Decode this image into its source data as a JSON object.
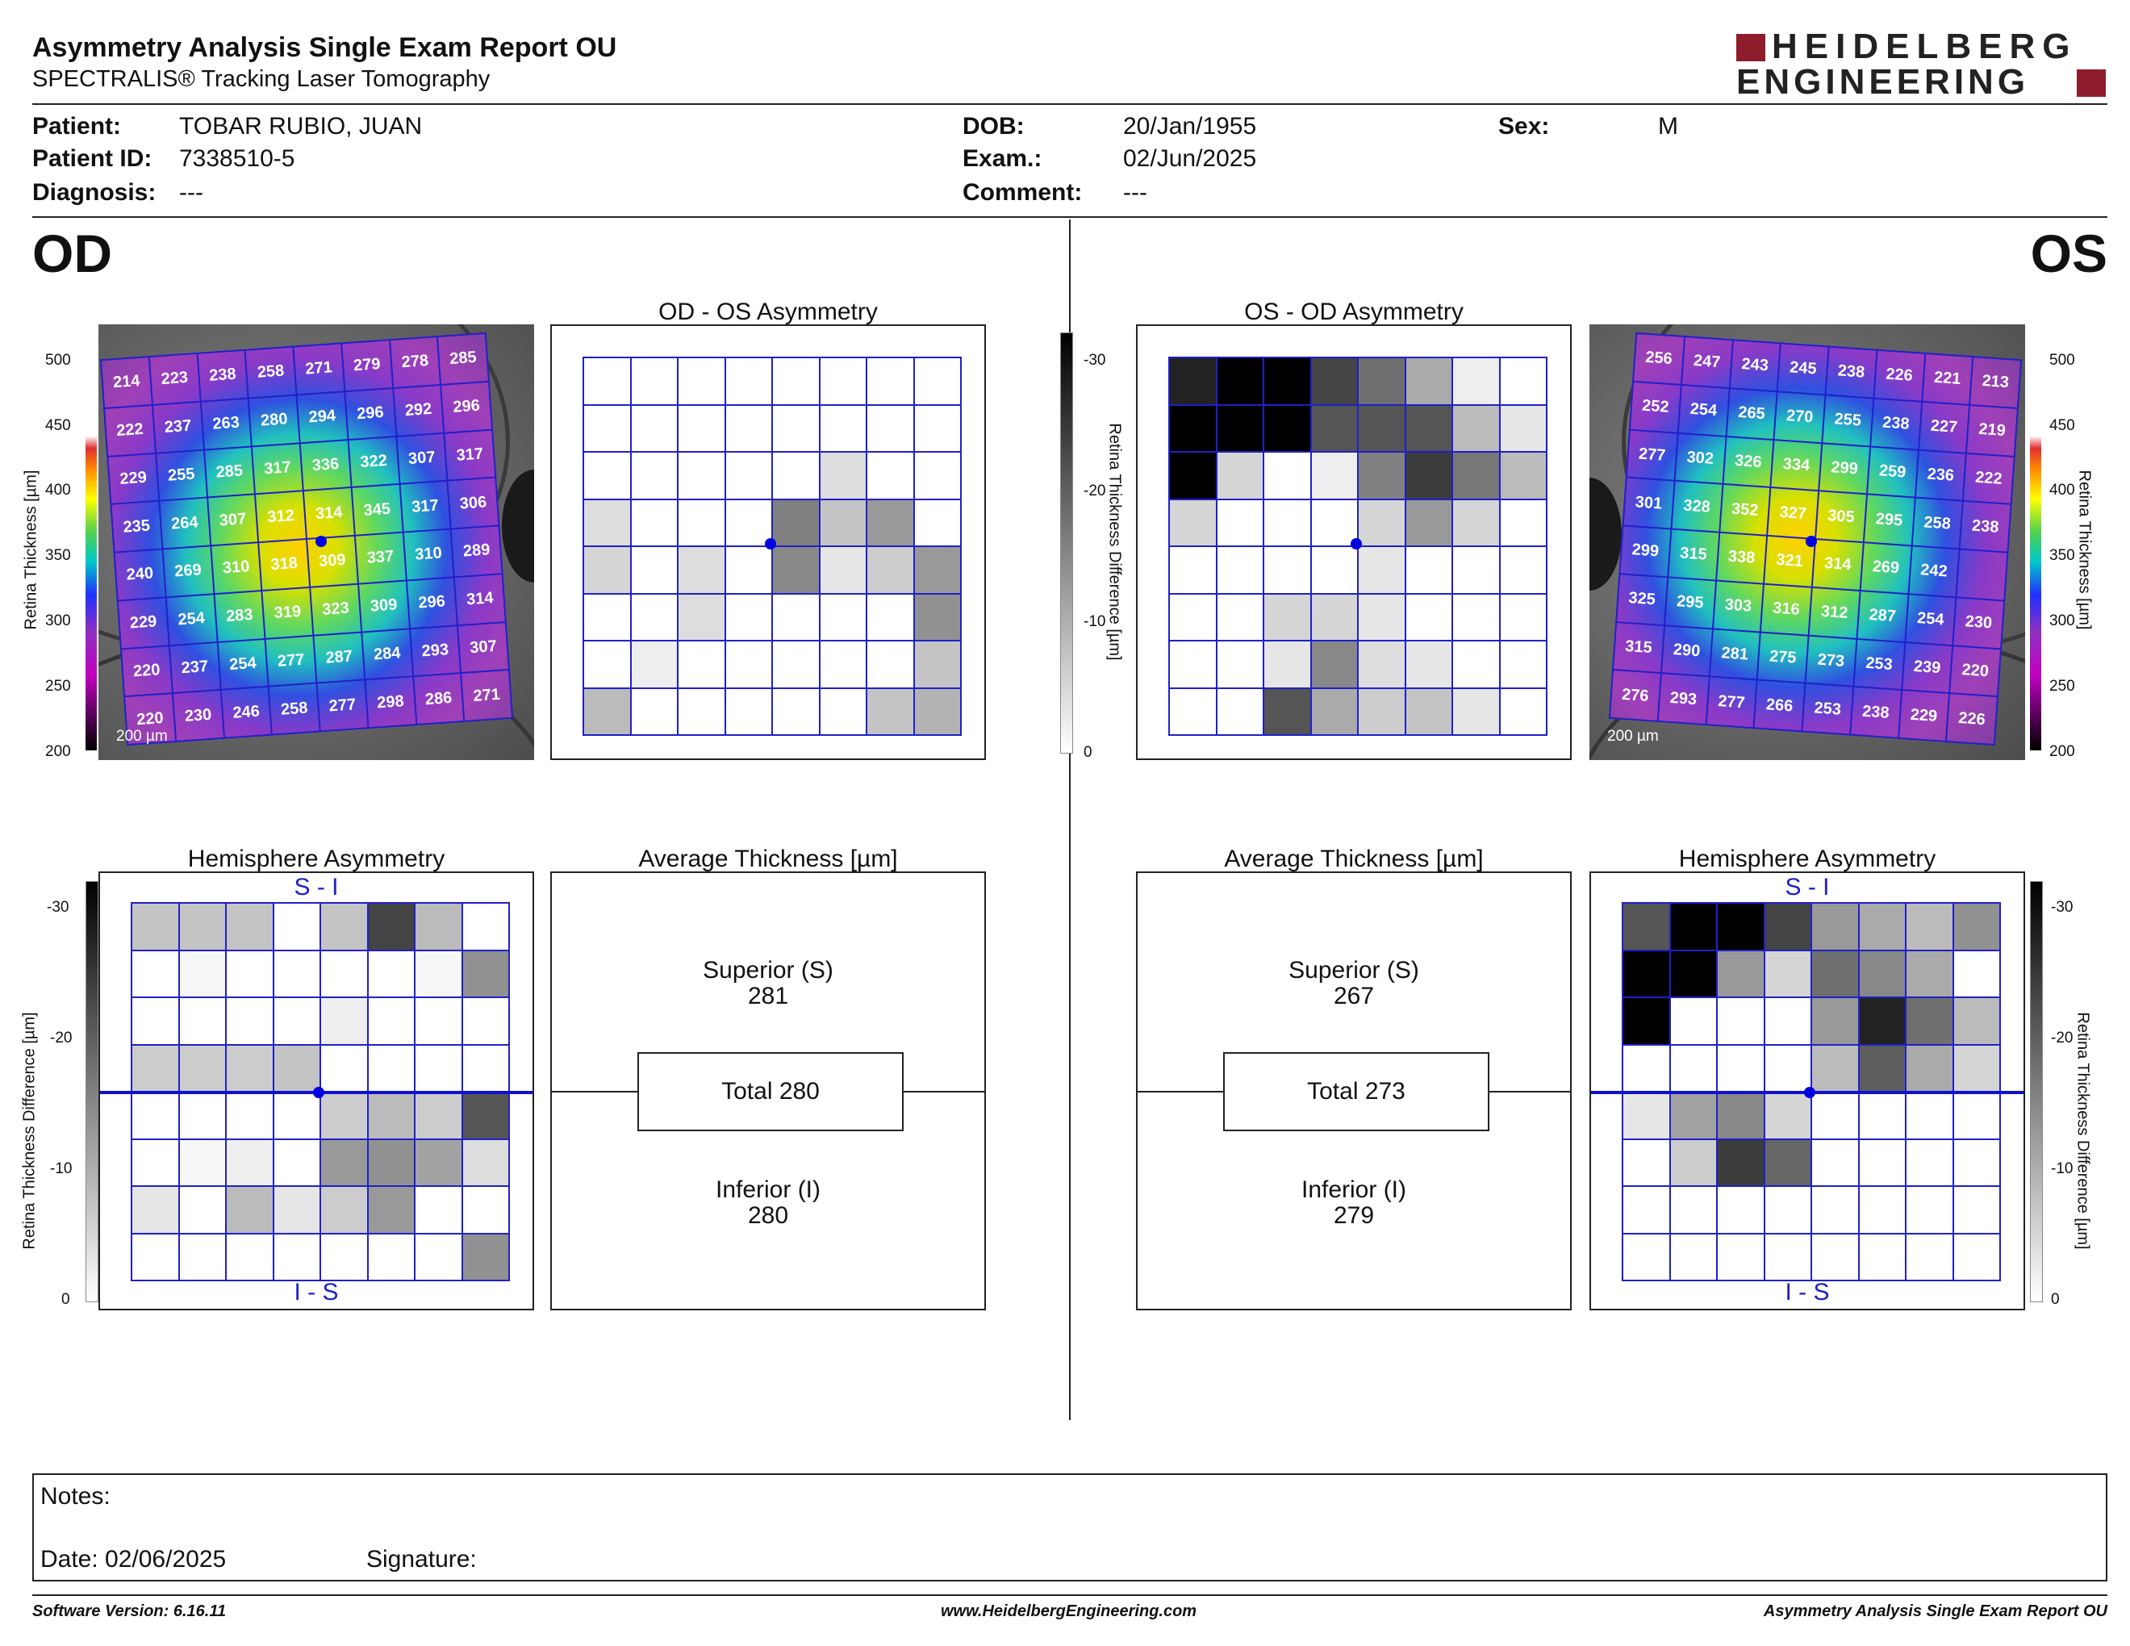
{
  "header": {
    "title": "Asymmetry Analysis Single Exam Report OU",
    "subtitle": "SPECTRALIS® Tracking Laser Tomography",
    "logo_line1": "HEIDELBERG",
    "logo_line2": "ENGINEERING"
  },
  "patient": {
    "patient_label": "Patient:",
    "patient_value": "TOBAR RUBIO, JUAN",
    "id_label": "Patient ID:",
    "id_value": "7338510-5",
    "diagnosis_label": "Diagnosis:",
    "diagnosis_value": "---",
    "dob_label": "DOB:",
    "dob_value": "20/Jan/1955",
    "exam_label": "Exam.:",
    "exam_value": "02/Jun/2025",
    "comment_label": "Comment:",
    "comment_value": "---",
    "sex_label": "Sex:",
    "sex_value": "M"
  },
  "eyes": {
    "od": "OD",
    "os": "OS"
  },
  "titles": {
    "od_os_asym": "OD - OS Asymmetry",
    "os_od_asym": "OS - OD Asymmetry",
    "hemi": "Hemisphere Asymmetry",
    "avg": "Average Thickness [µm]"
  },
  "axis": {
    "thickness_label": "Retina Thickness [µm]",
    "diff_label": "Retina Thickness Difference [µm]",
    "thickness_ticks": [
      "500",
      "450",
      "400",
      "350",
      "300",
      "250",
      "200"
    ],
    "diff_ticks": [
      "-30",
      "-20",
      "-10",
      "0"
    ],
    "scale_bar": "200 µm"
  },
  "hemi_labels": {
    "top": "S - I",
    "bottom": "I - S"
  },
  "od": {
    "thickness_grid": [
      [
        "214",
        "223",
        "238",
        "258",
        "271",
        "279",
        "278",
        "285"
      ],
      [
        "222",
        "237",
        "263",
        "280",
        "294",
        "296",
        "292",
        "296"
      ],
      [
        "229",
        "255",
        "285",
        "317",
        "336",
        "322",
        "307",
        "317"
      ],
      [
        "235",
        "264",
        "307",
        "312",
        "314",
        "345",
        "317",
        "306"
      ],
      [
        "240",
        "269",
        "310",
        "318",
        "309",
        "337",
        "310",
        "289"
      ],
      [
        "229",
        "254",
        "283",
        "319",
        "323",
        "309",
        "296",
        "314"
      ],
      [
        "220",
        "237",
        "254",
        "277",
        "287",
        "284",
        "293",
        "307"
      ],
      [
        "220",
        "230",
        "246",
        "258",
        "277",
        "298",
        "286",
        "271"
      ]
    ],
    "asym_grid": [
      [
        0,
        0,
        0,
        0,
        0,
        0,
        0,
        0
      ],
      [
        0,
        0,
        0,
        0,
        0,
        0,
        0,
        0
      ],
      [
        0,
        0,
        0,
        0,
        0,
        4,
        0,
        0
      ],
      [
        4,
        0,
        0,
        0,
        15,
        7,
        12,
        0
      ],
      [
        5,
        0,
        4,
        0,
        14,
        3,
        6,
        12
      ],
      [
        0,
        0,
        4,
        0,
        0,
        0,
        0,
        13
      ],
      [
        0,
        2,
        0,
        0,
        0,
        0,
        0,
        7
      ],
      [
        8,
        0,
        0,
        0,
        0,
        0,
        7,
        9
      ]
    ],
    "hemi_grid": [
      [
        7,
        7,
        7,
        0,
        7,
        22,
        8,
        0
      ],
      [
        0,
        1,
        0,
        0,
        0,
        0,
        1,
        13
      ],
      [
        0,
        0,
        0,
        0,
        2,
        0,
        0,
        0
      ],
      [
        6,
        6,
        6,
        7,
        0,
        0,
        0,
        0
      ],
      [
        0,
        0,
        0,
        0,
        6,
        8,
        6,
        20
      ],
      [
        0,
        1,
        2,
        0,
        12,
        13,
        11,
        4
      ],
      [
        3,
        0,
        8,
        3,
        6,
        12,
        0,
        0
      ],
      [
        0,
        0,
        0,
        0,
        0,
        0,
        0,
        13
      ]
    ],
    "superior_label": "Superior (S)",
    "superior_value": "281",
    "total_label": "Total 280",
    "inferior_label": "Inferior (I)",
    "inferior_value": "280"
  },
  "os": {
    "thickness_grid": [
      [
        "256",
        "247",
        "243",
        "245",
        "238",
        "226",
        "221",
        "213"
      ],
      [
        "252",
        "254",
        "265",
        "270",
        "255",
        "238",
        "227",
        "219"
      ],
      [
        "277",
        "302",
        "326",
        "334",
        "299",
        "259",
        "236",
        "222"
      ],
      [
        "301",
        "328",
        "352",
        "327",
        "305",
        "295",
        "258",
        "238"
      ],
      [
        "299",
        "315",
        "338",
        "321",
        "314",
        "269",
        "242",
        ""
      ],
      [
        "325",
        "295",
        "303",
        "316",
        "312",
        "287",
        "254",
        "230"
      ],
      [
        "315",
        "290",
        "281",
        "275",
        "273",
        "253",
        "239",
        "220"
      ],
      [
        "276",
        "293",
        "277",
        "266",
        "253",
        "238",
        "229",
        "226"
      ]
    ],
    "asym_grid": [
      [
        26,
        30,
        30,
        22,
        17,
        10,
        2,
        0
      ],
      [
        30,
        30,
        30,
        20,
        20,
        20,
        8,
        3
      ],
      [
        30,
        5,
        0,
        2,
        15,
        23,
        16,
        8
      ],
      [
        5,
        0,
        0,
        0,
        5,
        12,
        5,
        0
      ],
      [
        0,
        0,
        0,
        0,
        3,
        0,
        0,
        0
      ],
      [
        0,
        0,
        5,
        5,
        3,
        0,
        0,
        0
      ],
      [
        0,
        0,
        3,
        14,
        4,
        3,
        0,
        0
      ],
      [
        0,
        0,
        20,
        10,
        6,
        7,
        3,
        0
      ]
    ],
    "hemi_grid": [
      [
        20,
        30,
        30,
        22,
        12,
        10,
        8,
        13
      ],
      [
        30,
        30,
        12,
        5,
        17,
        14,
        10,
        0
      ],
      [
        30,
        0,
        0,
        0,
        12,
        26,
        17,
        8
      ],
      [
        0,
        0,
        0,
        0,
        8,
        19,
        10,
        5
      ],
      [
        3,
        11,
        14,
        5,
        0,
        0,
        0,
        0
      ],
      [
        0,
        6,
        23,
        18,
        0,
        0,
        0,
        0
      ],
      [
        0,
        0,
        0,
        0,
        0,
        0,
        0,
        0
      ],
      [
        0,
        0,
        0,
        0,
        0,
        0,
        0,
        0
      ]
    ],
    "superior_label": "Superior (S)",
    "superior_value": "267",
    "total_label": "Total 273",
    "inferior_label": "Inferior (I)",
    "inferior_value": "279"
  },
  "notes": {
    "notes_label": "Notes:",
    "date_label": "Date: 02/06/2025",
    "signature_label": "Signature:"
  },
  "footer": {
    "version": "Software Version: 6.16.11",
    "website": "www.HeidelbergEngineering.com",
    "report": "Asymmetry Analysis Single Exam Report OU"
  }
}
